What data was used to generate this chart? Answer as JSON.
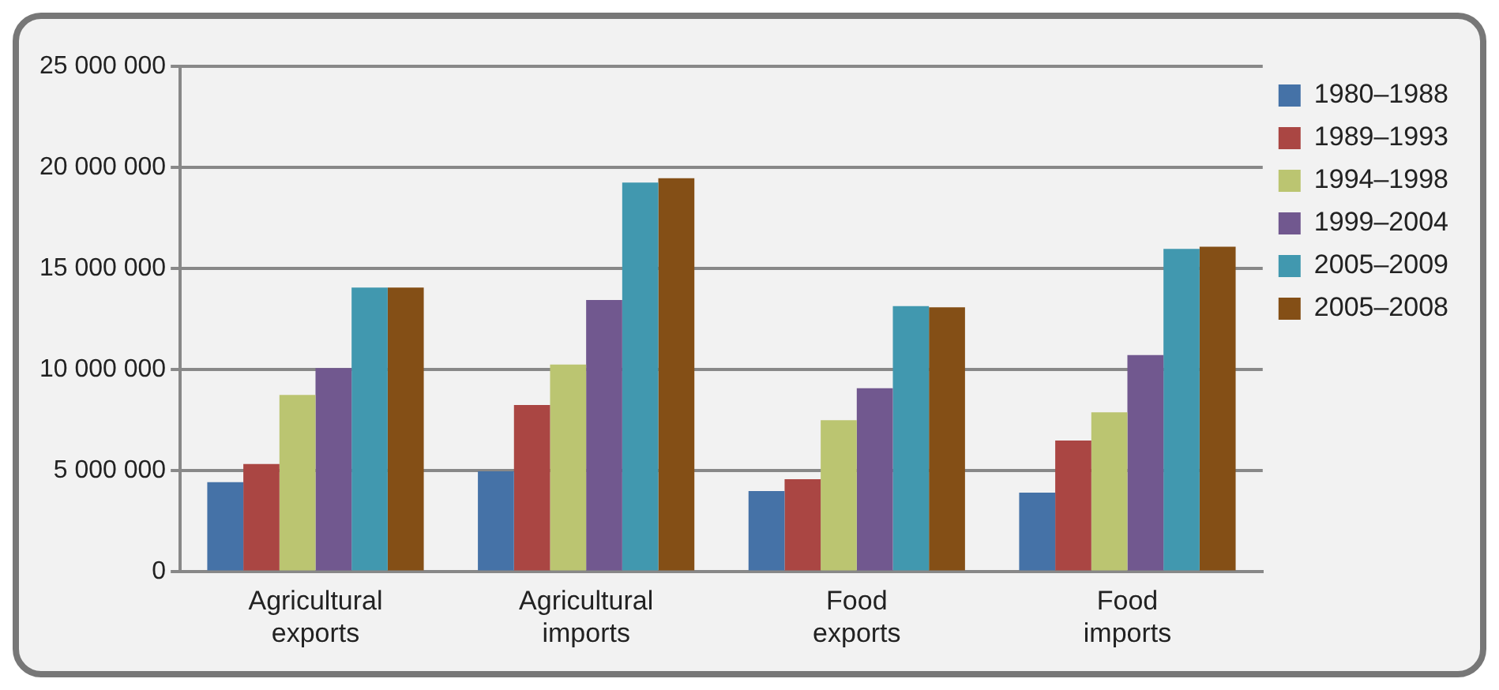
{
  "chart_data": {
    "type": "bar",
    "categories": [
      "Agricultural exports",
      "Agricultural imports",
      "Food exports",
      "Food imports"
    ],
    "series": [
      {
        "name": "1980–1988",
        "color": "#4572a7",
        "values": [
          4440000,
          4970000,
          4000000,
          3920000
        ]
      },
      {
        "name": "1989–1993",
        "color": "#aa4643",
        "values": [
          5330000,
          8250000,
          4580000,
          6500000
        ]
      },
      {
        "name": "1994–1998",
        "color": "#bbc571",
        "values": [
          8750000,
          10250000,
          7500000,
          7890000
        ]
      },
      {
        "name": "1999–2004",
        "color": "#71588f",
        "values": [
          10080000,
          13440000,
          9080000,
          10720000
        ]
      },
      {
        "name": "2005–2009",
        "color": "#4198af",
        "values": [
          14060000,
          19250000,
          13140000,
          15970000
        ]
      },
      {
        "name": "2005–2008",
        "color": "#844f16",
        "values": [
          14060000,
          19470000,
          13080000,
          16080000
        ]
      }
    ],
    "ylim": [
      0,
      25000000
    ],
    "yticks": [
      {
        "value": 0,
        "label": "0"
      },
      {
        "value": 5000000,
        "label": "5 000 000"
      },
      {
        "value": 10000000,
        "label": "10 000 000"
      },
      {
        "value": 15000000,
        "label": "15 000 000"
      },
      {
        "value": 20000000,
        "label": "20 000 000"
      },
      {
        "value": 25000000,
        "label": "25 000 000"
      }
    ],
    "grid": "y",
    "legend": "right"
  }
}
